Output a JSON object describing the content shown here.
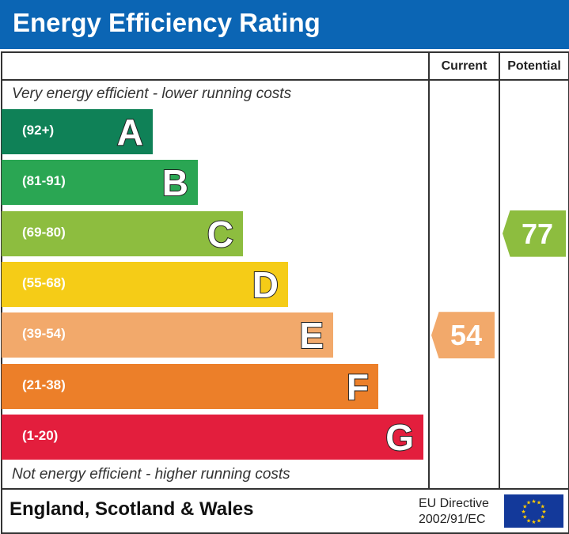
{
  "title": "Energy Efficiency Rating",
  "chart_data": {
    "type": "bar",
    "title": "Energy Efficiency Rating",
    "columns": [
      "Current",
      "Potential"
    ],
    "top_note": "Very energy efficient - lower running costs",
    "bottom_note": "Not energy efficient - higher running costs",
    "bands": [
      {
        "letter": "A",
        "range": "(92+)",
        "color": "#0f8157"
      },
      {
        "letter": "B",
        "range": "(81-91)",
        "color": "#2aa653"
      },
      {
        "letter": "C",
        "range": "(69-80)",
        "color": "#8dbd3f"
      },
      {
        "letter": "D",
        "range": "(55-68)",
        "color": "#f5cc17"
      },
      {
        "letter": "E",
        "range": "(39-54)",
        "color": "#f2a96b"
      },
      {
        "letter": "F",
        "range": "(21-38)",
        "color": "#ec7f29"
      },
      {
        "letter": "G",
        "range": "(1-20)",
        "color": "#e31e3d"
      }
    ],
    "current": {
      "value": "54",
      "band": "E",
      "color": "#f2a96b"
    },
    "potential": {
      "value": "77",
      "band": "C",
      "color": "#8dbd3f"
    }
  },
  "footer": {
    "region": "England, Scotland & Wales",
    "directive_line1": "EU Directive",
    "directive_line2": "2002/91/EC"
  }
}
